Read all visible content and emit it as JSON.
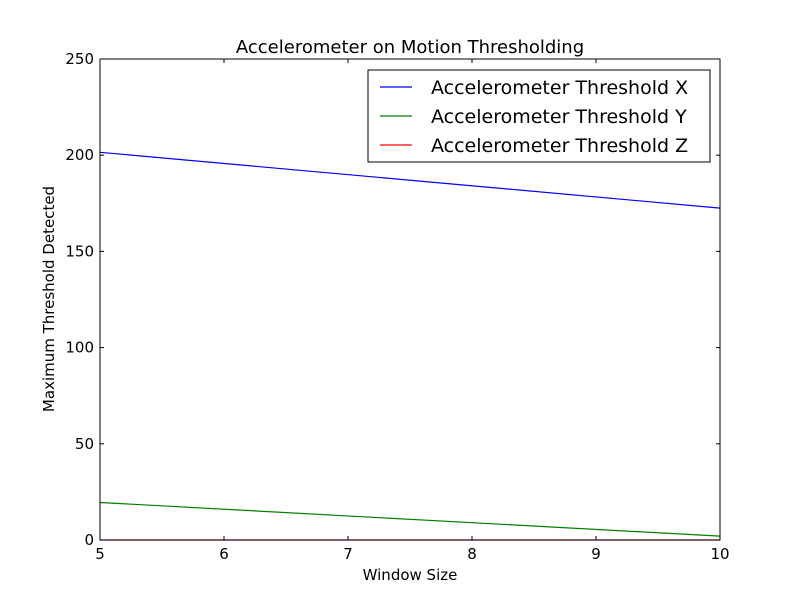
{
  "chart_data": {
    "type": "line",
    "title": "Accelerometer on Motion Thresholding",
    "xlabel": "Window Size",
    "ylabel": "Maximum Threshold Detected",
    "xlim": [
      5,
      10
    ],
    "ylim": [
      0,
      250
    ],
    "xticks": [
      "5",
      "6",
      "7",
      "8",
      "9",
      "10"
    ],
    "yticks": [
      "0",
      "50",
      "100",
      "150",
      "200",
      "250"
    ],
    "grid": false,
    "legend_position": "top-right",
    "series": [
      {
        "name": "Accelerometer Threshold X",
        "color": "#0000ff",
        "x": [
          5,
          10
        ],
        "y": [
          201.5,
          172.5
        ]
      },
      {
        "name": "Accelerometer Threshold Y",
        "color": "#008000",
        "x": [
          5,
          10
        ],
        "y": [
          19.5,
          2
        ]
      },
      {
        "name": "Accelerometer Threshold Z",
        "color": "#ff0000",
        "x": [
          5,
          10
        ],
        "y": [
          0,
          0
        ]
      }
    ]
  }
}
